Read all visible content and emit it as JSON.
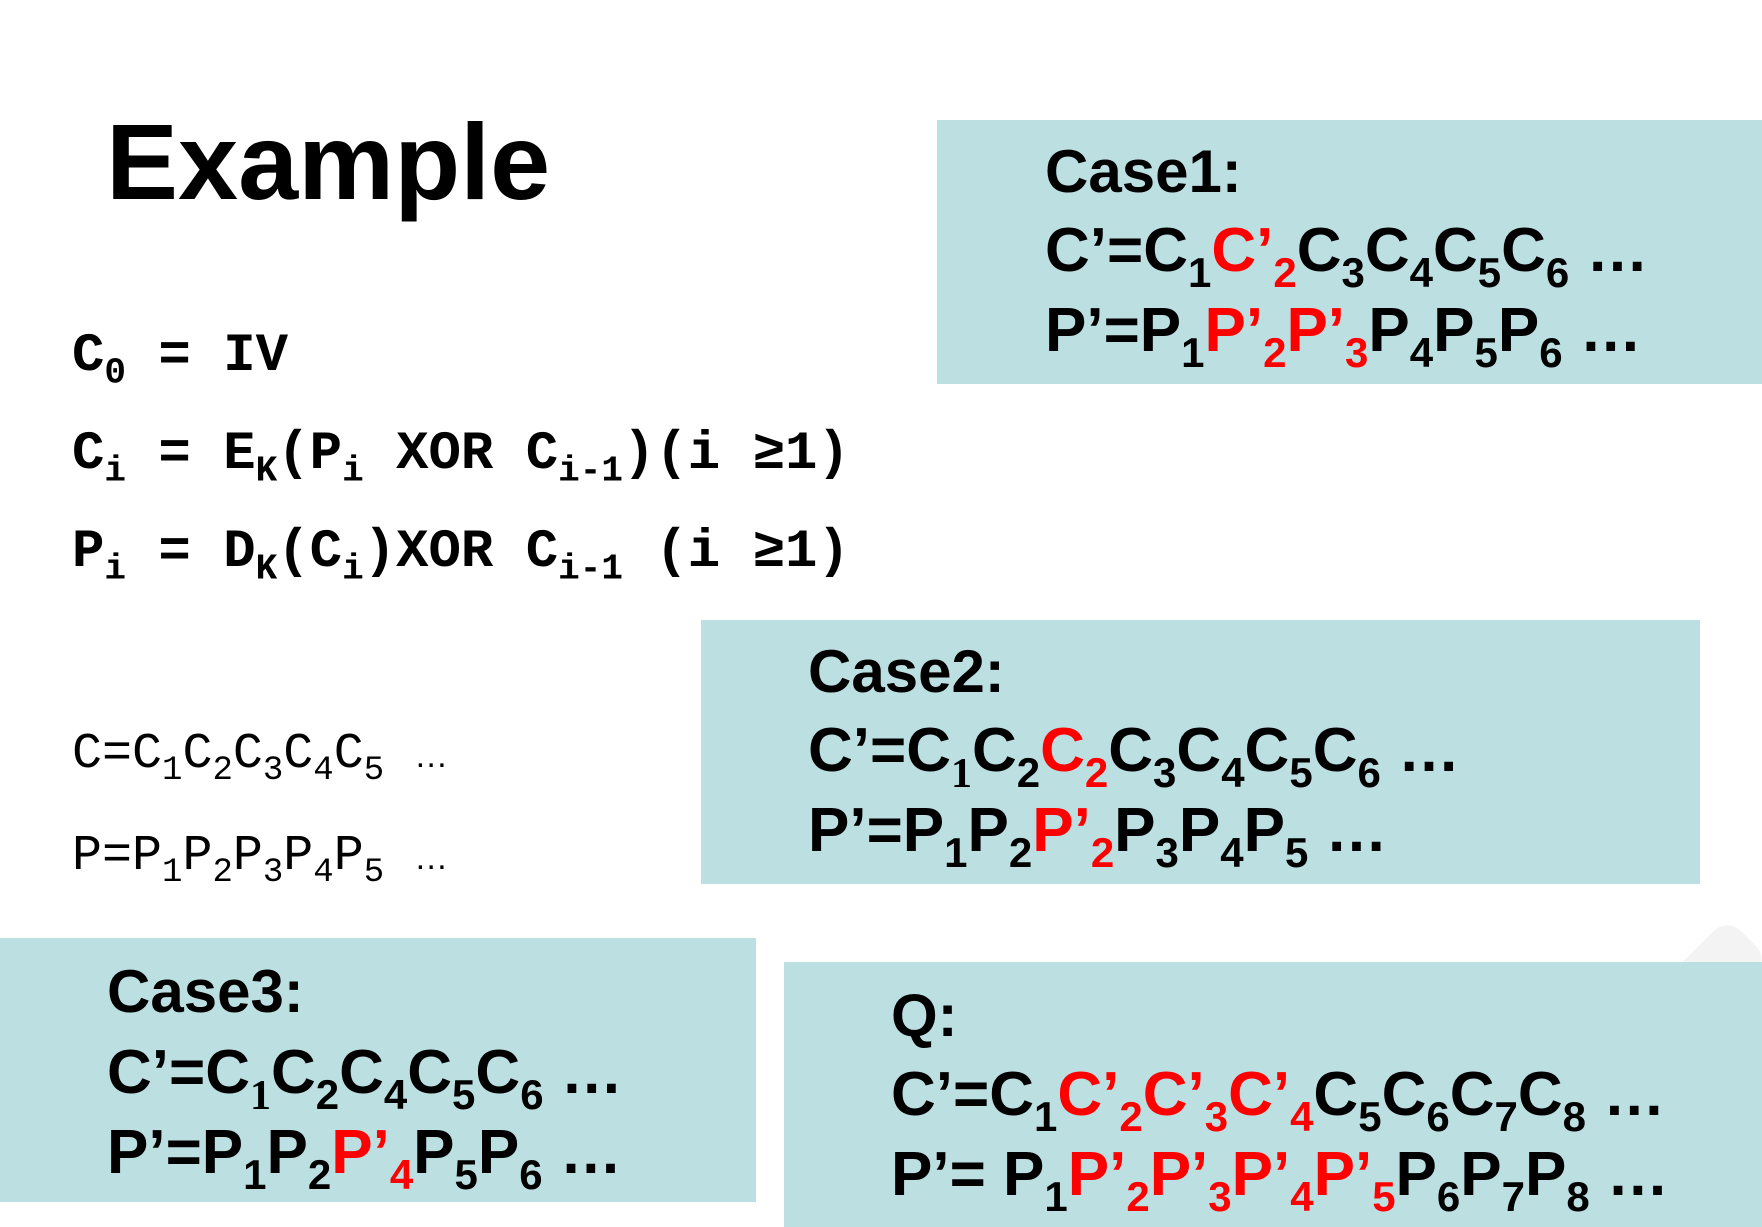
{
  "title": "Example",
  "formulas": {
    "f1": {
      "C": "C",
      "s0": "0",
      "rest": " = IV"
    },
    "f2": {
      "C": "C",
      "si": "i",
      "eq": " = E",
      "sK": "K",
      "open": "(P",
      "si2": "i",
      "xor": " XOR C",
      "sim1": "i-1",
      "tail": ")(i ≥1)"
    },
    "f3": {
      "P": "P",
      "si": "i",
      "eq": " = D",
      "sK": "K",
      "open": "(C",
      "si2": "i",
      "xor": ")XOR C",
      "sim1": "i-1",
      "tail": " (i ≥1)"
    }
  },
  "sequences": {
    "c": {
      "prefix": "C=",
      "letter": "C",
      "subs": [
        "1",
        "2",
        "3",
        "4",
        "5"
      ],
      "dots": "…"
    },
    "p": {
      "prefix": "P=",
      "letter": "P",
      "subs": [
        "1",
        "2",
        "3",
        "4",
        "5"
      ],
      "dots": "…"
    }
  },
  "case1": {
    "title": "Case1:",
    "c_line": {
      "prefix": "C’=C",
      "s1": "1",
      "red": "C’",
      "s2": "2",
      "rest": [
        "C",
        "3",
        "C",
        "4",
        "C",
        "5",
        "C",
        "6"
      ],
      "dots": " …"
    },
    "p_line": {
      "prefix": "P’=P",
      "s1": "1",
      "red1": "P’",
      "s2": "2",
      "red2": "P’",
      "s3": "3",
      "rest": [
        "P",
        "4",
        "P",
        "5",
        "P",
        "6"
      ],
      "dots": " …"
    }
  },
  "case2": {
    "title": "Case2:",
    "c_line": {
      "prefix": "C’=C",
      "s1": "1",
      "c2": "C",
      "s2": "2",
      "red": "C",
      "s2r": "2",
      "rest": [
        "C",
        "3",
        "C",
        "4",
        "C",
        "5",
        "C",
        "6"
      ],
      "dots": " …"
    },
    "p_line": {
      "prefix": "P’=P",
      "s1": "1",
      "p2": "P",
      "s2": "2",
      "red": "P’",
      "s2r": "2",
      "rest": [
        "P",
        "3",
        "P",
        "4",
        "P",
        "5"
      ],
      "dots": " …"
    }
  },
  "case3": {
    "title": "Case3:",
    "c_line": {
      "prefix": "C’=C",
      "s1": "1",
      "rest": [
        "C",
        "2",
        "C",
        "4",
        "C",
        "5",
        "C",
        "6"
      ],
      "dots": " …"
    },
    "p_line": {
      "prefix": "P’=P",
      "s1": "1",
      "p2": "P",
      "s2": "2",
      "red": "P’",
      "s4": "4",
      "rest": [
        "P",
        "5",
        "P",
        "6"
      ],
      "dots": " …"
    }
  },
  "q": {
    "title": "Q:",
    "c_line": {
      "prefix": "C’=C",
      "s1": "1",
      "reds": [
        "C’",
        "2",
        "C’",
        "3",
        "C’",
        "4"
      ],
      "rest": [
        "C",
        "5",
        "C",
        "6",
        "C",
        "7",
        "C",
        "8"
      ],
      "dots": " …"
    },
    "p_line": {
      "prefix": "P’= P",
      "s1": "1",
      "reds": [
        "P’",
        "2",
        "P’",
        "3",
        "P’",
        "4",
        "P’",
        "5"
      ],
      "rest": [
        "P",
        "6",
        "P",
        "7",
        "P",
        "8"
      ],
      "dots": " …"
    }
  },
  "colors": {
    "box": "#bcdfe2",
    "highlight": "#ff0000"
  }
}
